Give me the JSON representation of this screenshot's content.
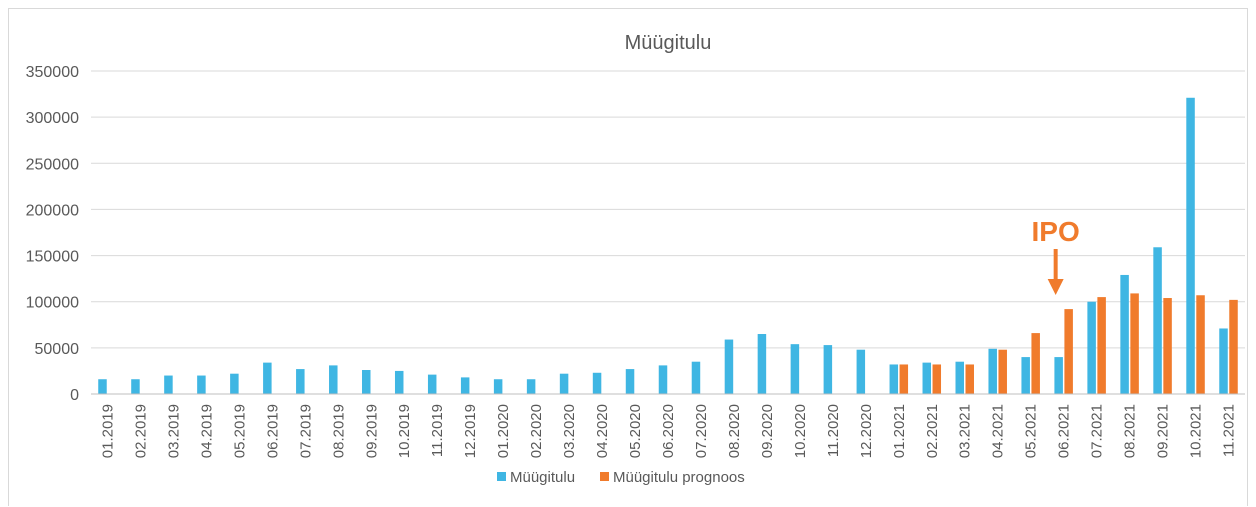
{
  "chart_data": {
    "type": "bar",
    "title": "Müügitulu",
    "xlabel": "",
    "ylabel": "",
    "ylim": [
      0,
      350000
    ],
    "yticks": [
      0,
      50000,
      100000,
      150000,
      200000,
      250000,
      300000,
      350000
    ],
    "ytick_labels": [
      "0",
      "50000",
      "100000",
      "150000",
      "200000",
      "250000",
      "300000",
      "350000"
    ],
    "grid": true,
    "legend_position": "bottom",
    "categories": [
      "01.2019",
      "02.2019",
      "03.2019",
      "04.2019",
      "05.2019",
      "06.2019",
      "07.2019",
      "08.2019",
      "09.2019",
      "10.2019",
      "11.2019",
      "12.2019",
      "01.2020",
      "02.2020",
      "03.2020",
      "04.2020",
      "05.2020",
      "06.2020",
      "07.2020",
      "08.2020",
      "09.2020",
      "10.2020",
      "11.2020",
      "12.2020",
      "01.2021",
      "02.2021",
      "03.2021",
      "04.2021",
      "05.2021",
      "06.2021",
      "07.2021",
      "08.2021",
      "09.2021",
      "10.2021",
      "11.2021"
    ],
    "series": [
      {
        "name": "Müügitulu",
        "color": "#3fb6e3",
        "values": [
          16000,
          16000,
          20000,
          20000,
          22000,
          34000,
          27000,
          31000,
          26000,
          25000,
          21000,
          18000,
          16000,
          16000,
          22000,
          23000,
          27000,
          31000,
          35000,
          59000,
          65000,
          54000,
          53000,
          48000,
          32000,
          34000,
          35000,
          49000,
          40000,
          40000,
          100000,
          129000,
          159000,
          321000,
          71000
        ]
      },
      {
        "name": "Müügitulu prognoos",
        "color": "#f07b2c",
        "values": [
          null,
          null,
          null,
          null,
          null,
          null,
          null,
          null,
          null,
          null,
          null,
          null,
          null,
          null,
          null,
          null,
          null,
          null,
          null,
          null,
          null,
          null,
          null,
          null,
          32000,
          32000,
          32000,
          48000,
          66000,
          92000,
          105000,
          109000,
          104000,
          107000,
          102000
        ]
      }
    ],
    "annotations": [
      {
        "text": "IPO",
        "category": "06.2021",
        "color": "#f07b2c",
        "arrow": "down"
      }
    ]
  }
}
